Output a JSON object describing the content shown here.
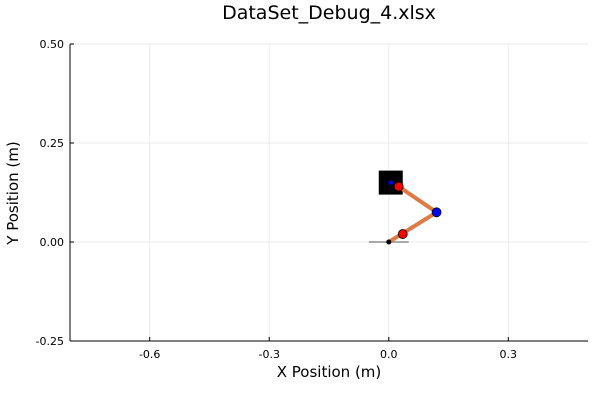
{
  "chart_data": {
    "type": "scatter",
    "title": "DataSet_Debug_4.xlsx",
    "xlabel": "X Position (m)",
    "ylabel": "Y Position (m)",
    "xlim": [
      -0.8,
      0.5
    ],
    "ylim": [
      -0.25,
      0.5
    ],
    "x_ticks": [
      -0.6,
      -0.3,
      0.0,
      0.3
    ],
    "x_tick_labels": [
      "-0.6",
      "-0.3",
      "0.0",
      "0.3"
    ],
    "y_ticks": [
      -0.25,
      0.0,
      0.25,
      0.5
    ],
    "y_tick_labels": [
      "-0.25",
      "0.00",
      "0.25",
      "0.50"
    ],
    "grid": true,
    "legend": "none",
    "colors": {
      "arm": "#e07a45",
      "joint": "#0000ff",
      "marker": "#ff0000",
      "target": "#000000",
      "base": "#aaaaaa",
      "origin": "#000000"
    },
    "series": [
      {
        "kind": "line",
        "points": [
          [
            -0.05,
            0.0
          ],
          [
            0.05,
            0.0
          ]
        ]
      },
      {
        "kind": "line",
        "points": [
          [
            0.0,
            0.0
          ],
          [
            0.12,
            0.075
          ],
          [
            0.025,
            0.14
          ]
        ]
      },
      {
        "kind": "square",
        "points": [
          [
            0.005,
            0.15
          ]
        ]
      },
      {
        "kind": "point",
        "points": [
          [
            0.0,
            0.0
          ]
        ]
      },
      {
        "kind": "point",
        "points": [
          [
            0.12,
            0.075
          ]
        ]
      },
      {
        "kind": "point",
        "points": [
          [
            0.035,
            0.02
          ],
          [
            0.025,
            0.14
          ]
        ]
      },
      {
        "kind": "point",
        "points": [
          [
            0.005,
            0.15
          ]
        ]
      }
    ]
  }
}
